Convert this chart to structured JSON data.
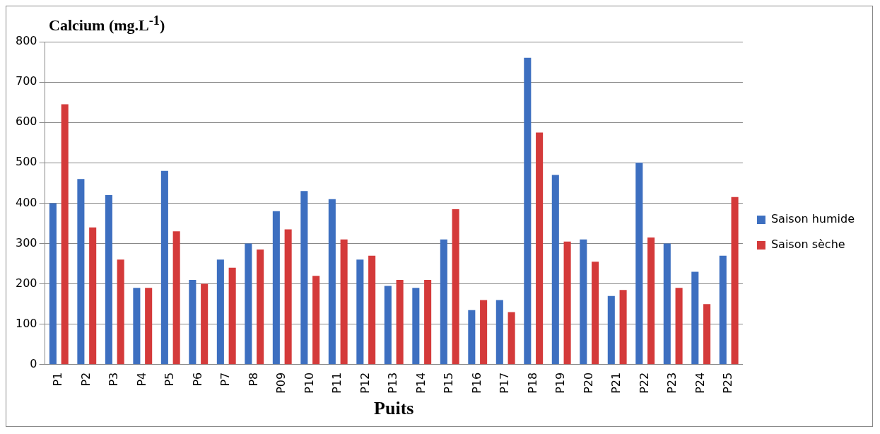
{
  "chart_data": {
    "type": "bar",
    "ylabel": "Calcium (mg.L$^{-1}$)",
    "xlabel": "Puits",
    "categories": [
      "P1",
      "P2",
      "P3",
      "P4",
      "P5",
      "P6",
      "P7",
      "P8",
      "P09",
      "P10",
      "P11",
      "P12",
      "P13",
      "P14",
      "P15",
      "P16",
      "P17",
      "P18",
      "P19",
      "P20",
      "P21",
      "P22",
      "P23",
      "P24",
      "P25"
    ],
    "series": [
      {
        "name": "Saison humide",
        "color": "#3d6fc0",
        "values": [
          400,
          460,
          420,
          190,
          480,
          210,
          260,
          300,
          380,
          430,
          410,
          260,
          195,
          190,
          310,
          135,
          160,
          760,
          470,
          310,
          170,
          500,
          300,
          230,
          270
        ]
      },
      {
        "name": "Saison sèche",
        "color": "#d43a3a",
        "values": [
          645,
          340,
          260,
          190,
          330,
          200,
          240,
          285,
          335,
          220,
          310,
          270,
          210,
          210,
          385,
          160,
          130,
          575,
          305,
          255,
          185,
          315,
          190,
          150,
          415
        ]
      }
    ],
    "ylim": [
      0,
      800
    ],
    "yticks": [
      0,
      100,
      200,
      300,
      400,
      500,
      600,
      700,
      800
    ],
    "grid": "y",
    "legend": "right"
  }
}
